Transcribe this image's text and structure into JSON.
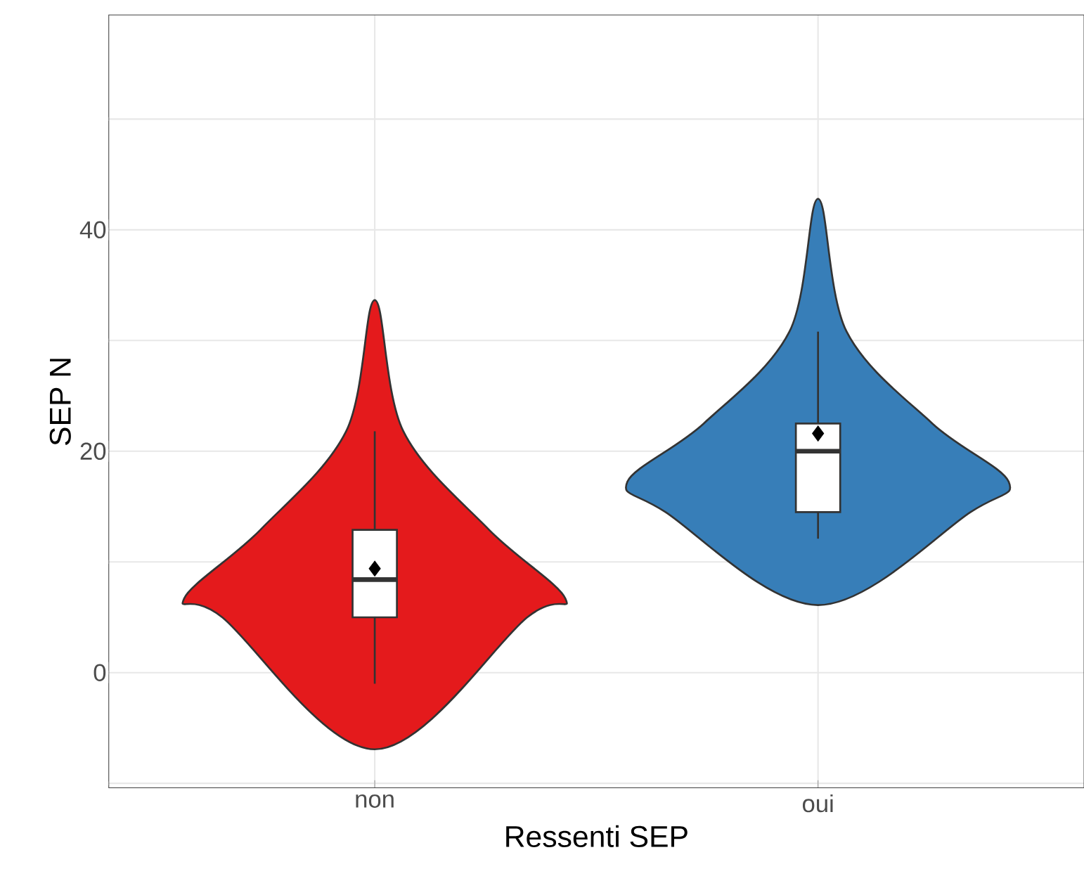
{
  "chart_data": {
    "type": "box",
    "xlabel": "Ressenti SEP",
    "ylabel": "SEP N",
    "categories": [
      "non",
      "oui"
    ],
    "colors": [
      "#e41a1c",
      "#377eb8"
    ],
    "series": [
      {
        "color": "#ffffff",
        "boxes": [
          {
            "low": -1,
            "q1": 5,
            "median": 8.4,
            "q3": 12.9,
            "high": 21.8,
            "mean": 9.4
          },
          null
        ]
      },
      {
        "color": "#ffffff",
        "boxes": [
          null,
          {
            "low": 12.1,
            "q1": 14.5,
            "median": 20,
            "q3": 22.5,
            "high": 30.8,
            "mean": 21.6
          }
        ]
      }
    ],
    "ylim": [
      -10.4,
      59.4
    ],
    "yticks": [
      {
        "value": -10,
        "label": null
      },
      0,
      {
        "value": 10,
        "label": null
      },
      20,
      {
        "value": 30,
        "label": null
      },
      40,
      {
        "value": 50,
        "label": null
      }
    ],
    "grid": true
  }
}
